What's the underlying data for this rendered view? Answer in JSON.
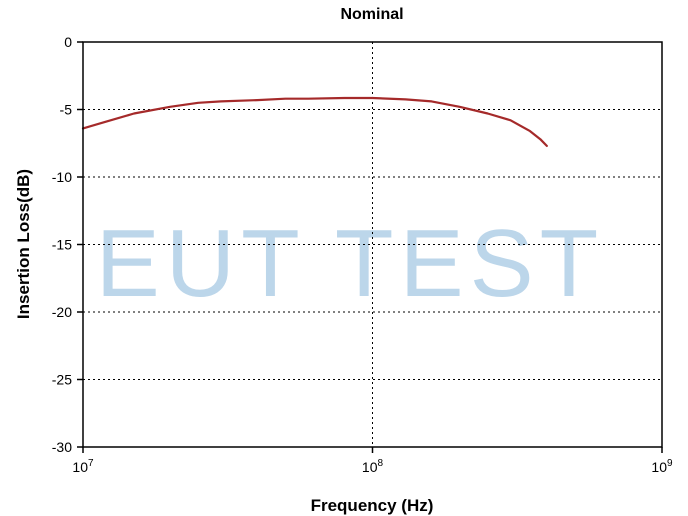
{
  "watermark": "EUT TEST",
  "chart_data": {
    "type": "line",
    "title": "Nominal",
    "xlabel": "Frequency (Hz)",
    "ylabel": "Insertion Loss(dB)",
    "xscale": "log",
    "xlim": [
      10000000,
      1000000000
    ],
    "ylim": [
      -30,
      0
    ],
    "x_ticks": [
      {
        "base": "10",
        "exp": "7"
      },
      {
        "base": "10",
        "exp": "8"
      },
      {
        "base": "10",
        "exp": "9"
      }
    ],
    "y_ticks": [
      "0",
      "-5",
      "-10",
      "-15",
      "-20",
      "-25",
      "-30"
    ],
    "grid": true,
    "grid_style": "dotted",
    "series": [
      {
        "color": "#a52a2a",
        "x": [
          10000000,
          12000000,
          15000000,
          20000000,
          25000000,
          30000000,
          40000000,
          50000000,
          60000000,
          80000000,
          100000000,
          130000000,
          160000000,
          200000000,
          250000000,
          300000000,
          350000000,
          380000000,
          400000000
        ],
        "y": [
          -6.4,
          -5.9,
          -5.3,
          -4.8,
          -4.5,
          -4.4,
          -4.3,
          -4.2,
          -4.2,
          -4.15,
          -4.15,
          -4.25,
          -4.4,
          -4.8,
          -5.3,
          -5.8,
          -6.6,
          -7.2,
          -7.7
        ]
      }
    ]
  }
}
